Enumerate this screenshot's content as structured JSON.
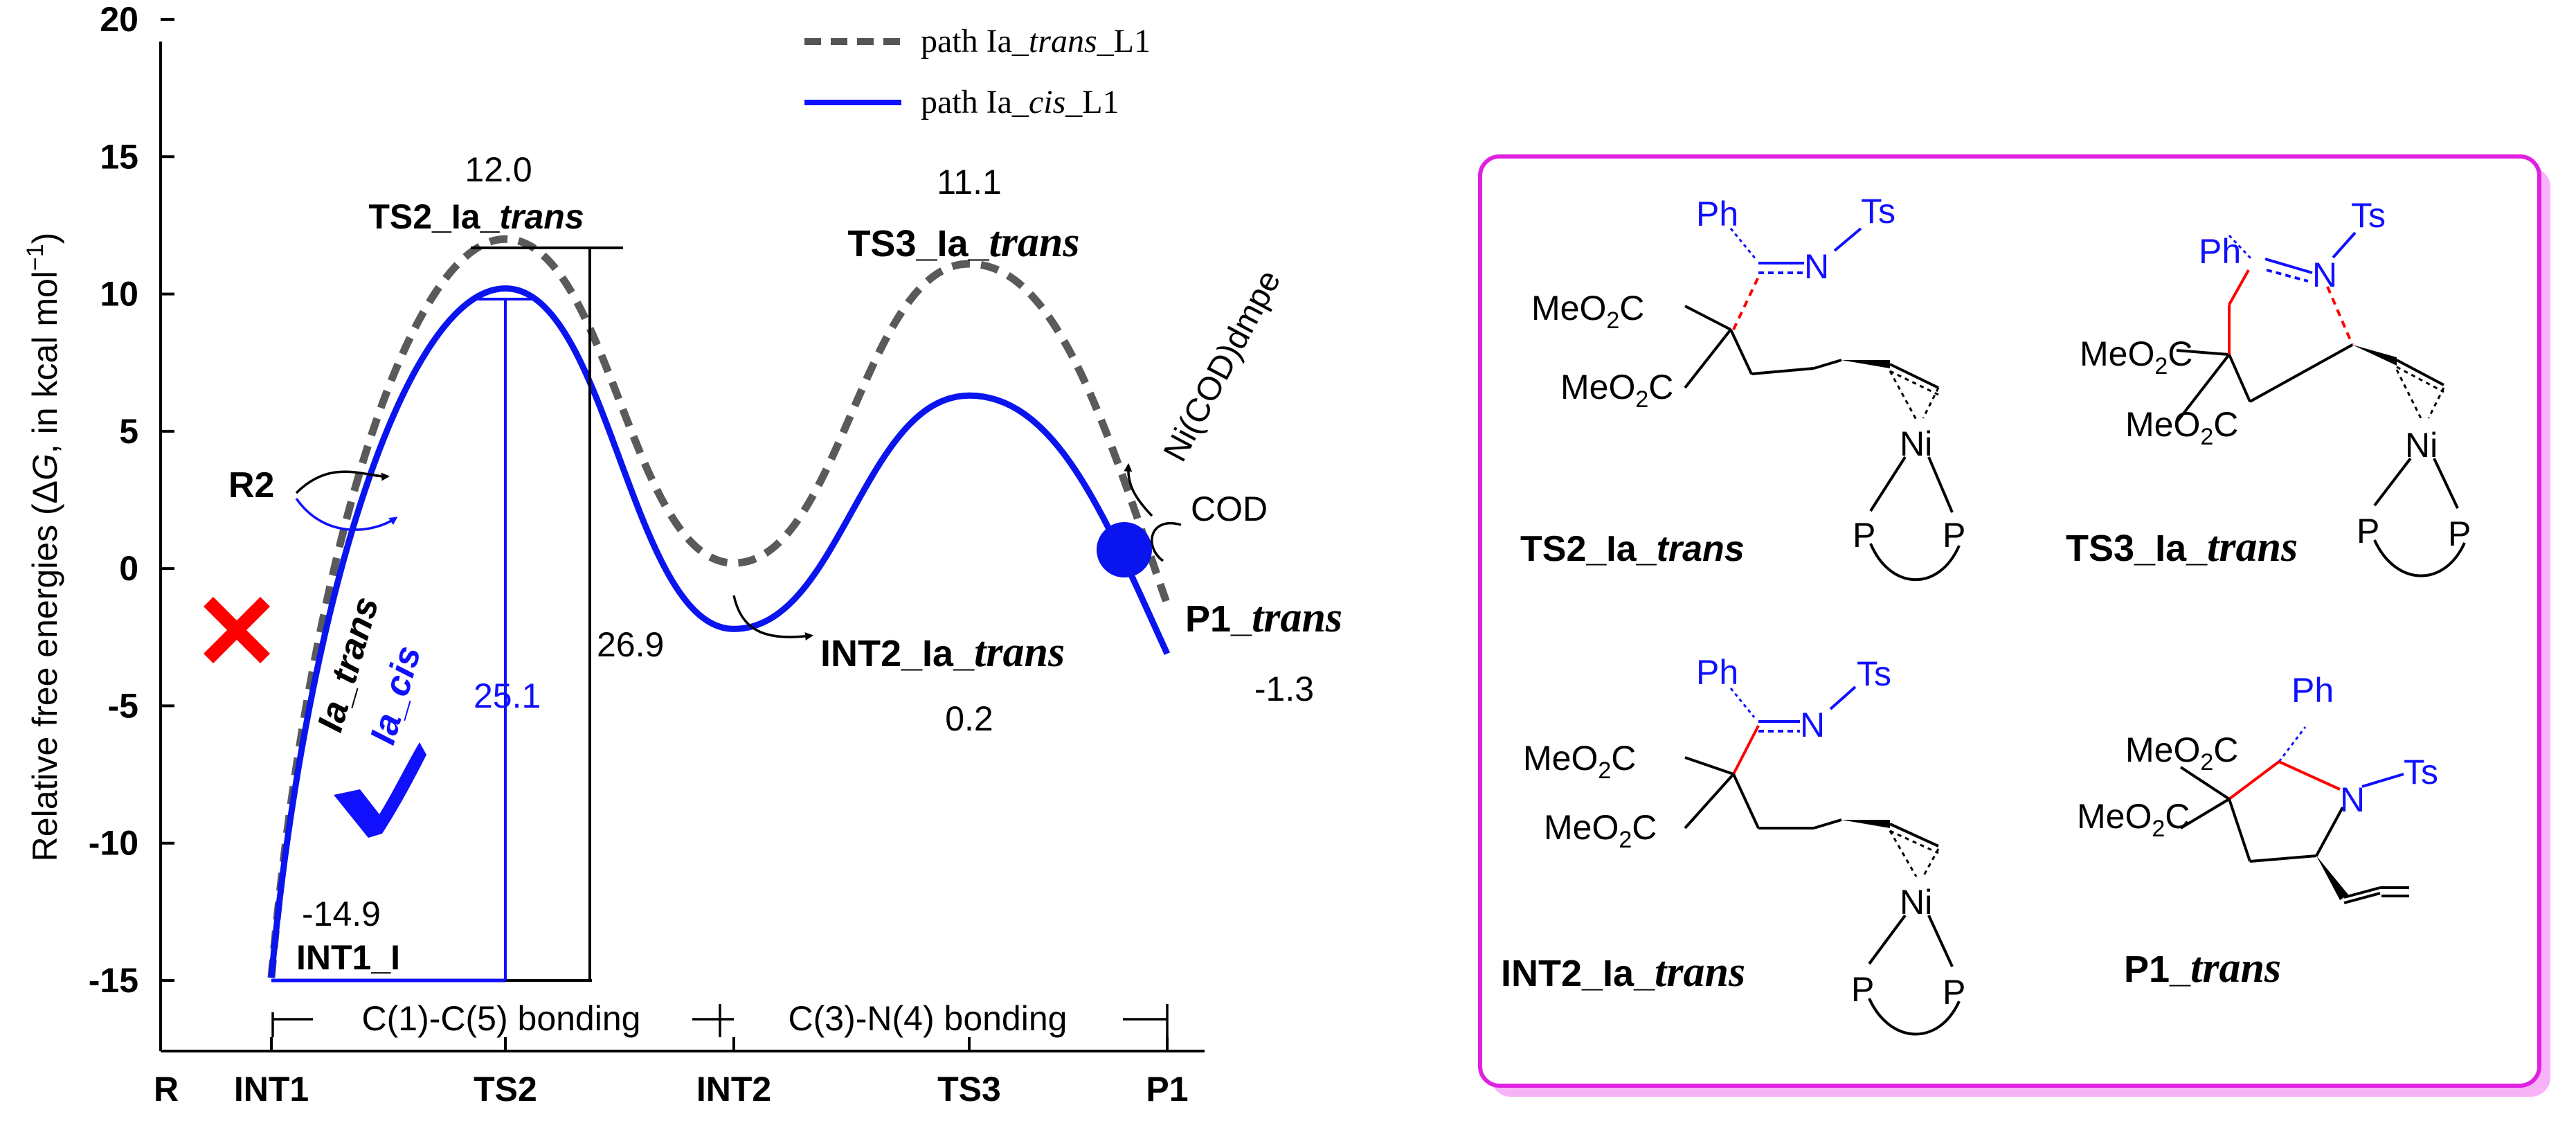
{
  "chart_data": {
    "type": "line",
    "ylabel_parts": [
      "Relative free energies (Δ",
      "G",
      ", in kcal mol",
      "−1",
      ")"
    ],
    "ylim": [
      -15,
      20
    ],
    "y_ticks": [
      "-15",
      "-10",
      "-5",
      "0",
      "5",
      "10",
      "15",
      "20"
    ],
    "x_categories": [
      "R",
      "INT1",
      "TS2",
      "INT2",
      "TS3",
      "P1"
    ],
    "legend": {
      "position": "top-center",
      "items": [
        {
          "prefix": "path Ia_",
          "italic": "trans",
          "suffix": "_L1",
          "style": "dashed",
          "color": "#555555"
        },
        {
          "prefix": "path Ia_",
          "italic": "cis",
          "suffix": "_L1",
          "style": "solid",
          "color": "#0000ff"
        }
      ]
    },
    "series": [
      {
        "name": "path Ia_trans_L1",
        "points": [
          {
            "x": "INT1",
            "y": -14.9
          },
          {
            "x": "TS2",
            "y": 12.0
          },
          {
            "x": "INT2",
            "y": 0.2
          },
          {
            "x": "TS3",
            "y": 11.1
          },
          {
            "x": "P1",
            "y": -1.3
          }
        ]
      },
      {
        "name": "path Ia_cis_L1",
        "points": [
          {
            "x": "INT1",
            "y": -14.9
          },
          {
            "x": "TS2",
            "y": 10.2
          },
          {
            "x": "INT2",
            "y": -2.2
          },
          {
            "x": "TS3",
            "y": 6.3
          },
          {
            "x": "P1",
            "y": -3.1
          }
        ]
      }
    ],
    "value_labels": [
      {
        "text": "12.0",
        "target": "TS2_Ia_trans"
      },
      {
        "text": "11.1",
        "target": "TS3_Ia_trans"
      },
      {
        "text": "0.2",
        "target": "INT2_Ia_trans"
      },
      {
        "text": "-1.3",
        "target": "P1_trans"
      },
      {
        "text": "-14.9",
        "target": "INT1_I"
      }
    ],
    "barriers": [
      {
        "text": "26.9",
        "color": "#000000",
        "series": "path Ia_trans_L1"
      },
      {
        "text": "25.1",
        "color": "#0000ff",
        "series": "path Ia_cis_L1"
      }
    ],
    "point_labels": {
      "ts2": {
        "pre": "TS2_Ia_",
        "it": "trans"
      },
      "ts3": {
        "pre": "TS3_Ia_",
        "it": "trans"
      },
      "int2": {
        "pre": "INT2_Ia_",
        "it": "trans"
      },
      "p1": {
        "pre": "P1_",
        "it": "trans"
      },
      "int1": "INT1_I"
    },
    "annotations": {
      "r2": "R2",
      "ia_trans": "Ia_trans",
      "ia_cis": "Ia_cis",
      "ni_cod": "Ni(COD)dmpe",
      "cod": "COD"
    },
    "bonding_ranges": [
      {
        "label": "C(1)-C(5) bonding",
        "from": "INT1",
        "to": "INT2"
      },
      {
        "label": "C(3)-N(4) bonding",
        "from": "INT2",
        "to": "P1"
      }
    ]
  },
  "structures_panel": {
    "border_color": "#e020e0",
    "structures": [
      {
        "id": "TS2",
        "caption_pre": "TS2_Ia_",
        "caption_it": "trans",
        "ph": "Ph",
        "ts": "Ts",
        "n": "N",
        "ni": "Ni",
        "ester1": [
          "MeO",
          "2",
          "C"
        ],
        "ester2": [
          "MeO",
          "2",
          "C"
        ],
        "p1": "P",
        "p2": "P"
      },
      {
        "id": "TS3",
        "caption_pre": "TS3_Ia_",
        "caption_it": "trans",
        "ph": "Ph",
        "ts": "Ts",
        "n": "N",
        "ni": "Ni",
        "ester1": [
          "MeO",
          "2",
          "C"
        ],
        "ester2": [
          "MeO",
          "2",
          "C"
        ],
        "p1": "P",
        "p2": "P"
      },
      {
        "id": "INT2",
        "caption_pre": "INT2_Ia_",
        "caption_it": "trans",
        "ph": "Ph",
        "ts": "Ts",
        "n": "N",
        "ni": "Ni",
        "ester1": [
          "MeO",
          "2",
          "C"
        ],
        "ester2": [
          "MeO",
          "2",
          "C"
        ],
        "p1": "P",
        "p2": "P"
      },
      {
        "id": "P1",
        "caption_pre": "P1_",
        "caption_it": "trans",
        "ph": "Ph",
        "ts": "Ts",
        "n": "N",
        "ester1": [
          "MeO",
          "2",
          "C"
        ],
        "ester2": [
          "MeO",
          "2",
          "C"
        ]
      }
    ]
  }
}
